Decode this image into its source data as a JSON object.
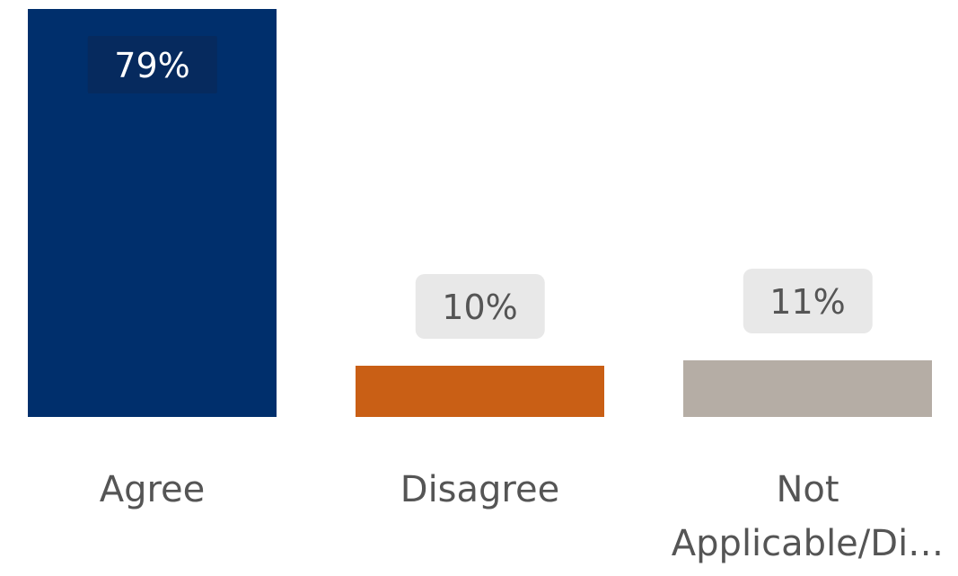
{
  "chart_data": {
    "type": "bar",
    "categories": [
      "Agree",
      "Disagree",
      "Not Applicable/Di…"
    ],
    "values": [
      79,
      10,
      11
    ],
    "value_labels": [
      "79%",
      "10%",
      "11%"
    ],
    "colors": [
      "#002f6c",
      "#c95f15",
      "#b5ada5"
    ]
  }
}
